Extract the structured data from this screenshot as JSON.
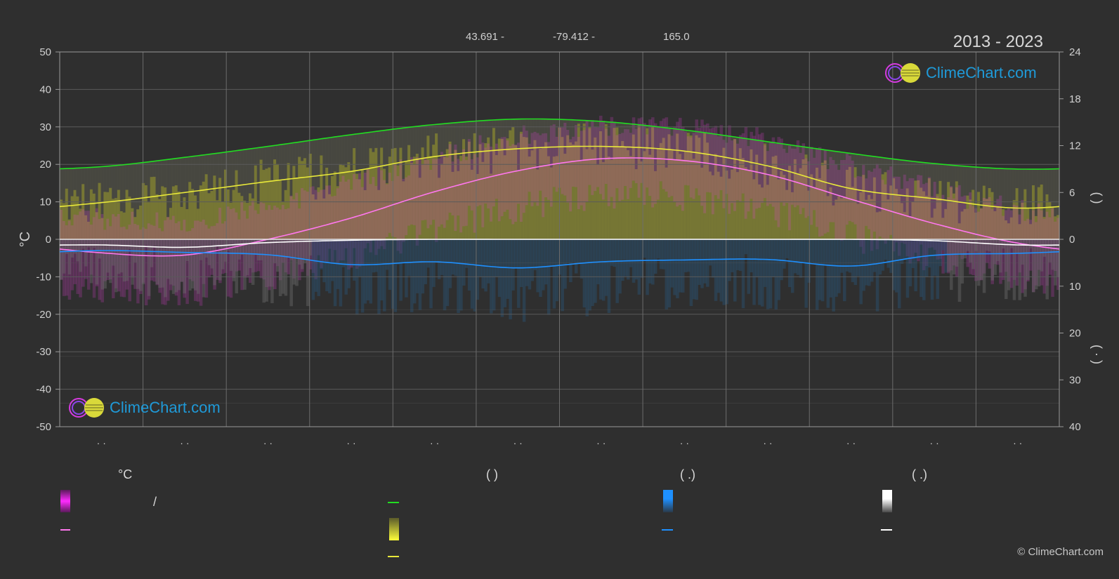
{
  "header": {
    "lat": "43.691 -",
    "lon": "-79.412 -",
    "elev": "165.0",
    "years": "2013 - 2023"
  },
  "brand": {
    "logo_text": "ClimeChart.com",
    "copyright": "© ClimeChart.com"
  },
  "chart_data": {
    "type": "area",
    "ylabel_left": "°C",
    "ylim_left": [
      -50,
      50
    ],
    "yticks_left": [
      "50",
      "40",
      "30",
      "20",
      "10",
      "0",
      "-10",
      "-20",
      "-30",
      "-40",
      "-50"
    ],
    "ylim_right_top": [
      0,
      24
    ],
    "yticks_right_top": [
      "24",
      "18",
      "12",
      "6",
      "0"
    ],
    "ylim_right_bottom": [
      0,
      40
    ],
    "yticks_right_bottom": [
      "10",
      "20",
      "30",
      "40"
    ],
    "ylabel_right_top": "(   )",
    "ylabel_right_bottom": "(  ·   )",
    "month_count": 12,
    "month_labels": [
      "· ·",
      "· ·",
      "· ·",
      "· ·",
      "· ·",
      "· ·",
      "· ·",
      "· ·",
      "· ·",
      "· ·",
      "· ·",
      "· ·"
    ],
    "series": [
      {
        "key": "daylight",
        "color": "#22dd22",
        "axis": "hours",
        "values": [
          9.3,
          10.5,
          11.9,
          13.4,
          14.7,
          15.4,
          15.1,
          14.0,
          12.5,
          11.0,
          9.7,
          9.0
        ]
      },
      {
        "key": "sunshine",
        "color": "#e8e83a",
        "axis": "hours",
        "values": [
          4.7,
          6.0,
          7.4,
          8.7,
          10.6,
          11.6,
          11.9,
          11.3,
          9.4,
          6.5,
          5.2,
          4.0
        ]
      },
      {
        "key": "temp_mean",
        "color": "#ff77ee",
        "axis": "temp",
        "values": [
          -3.6,
          -4.2,
          0.0,
          5.7,
          12.7,
          18.3,
          21.5,
          21.0,
          17.3,
          10.7,
          4.2,
          -1.0
        ]
      },
      {
        "key": "precip",
        "color": "#1e90ff",
        "axis": "mm",
        "values": [
          2.4,
          2.8,
          3.3,
          5.4,
          4.8,
          6.1,
          4.8,
          4.4,
          4.3,
          5.7,
          3.4,
          3.0
        ]
      },
      {
        "key": "snow",
        "color": "#ffffff",
        "axis": "mm",
        "values": [
          1.2,
          1.7,
          0.7,
          0.2,
          0.0,
          0.0,
          0.0,
          0.0,
          0.0,
          0.0,
          0.3,
          1.2
        ]
      }
    ]
  },
  "legend": {
    "col1_title": "°C",
    "col1_sep": "/",
    "col2_title": "(         )",
    "col3_title": "(   .)",
    "col4_title": "(   .)"
  },
  "colors": {
    "background": "#2f2f2f",
    "grid": "#5a5a5a",
    "daylight": "#22dd22",
    "sunshine": "#e8e83a",
    "temp_mean": "#ff77ee",
    "temp_range": "#e23fd8",
    "precip": "#1e90ff",
    "snow": "#ffffff"
  }
}
